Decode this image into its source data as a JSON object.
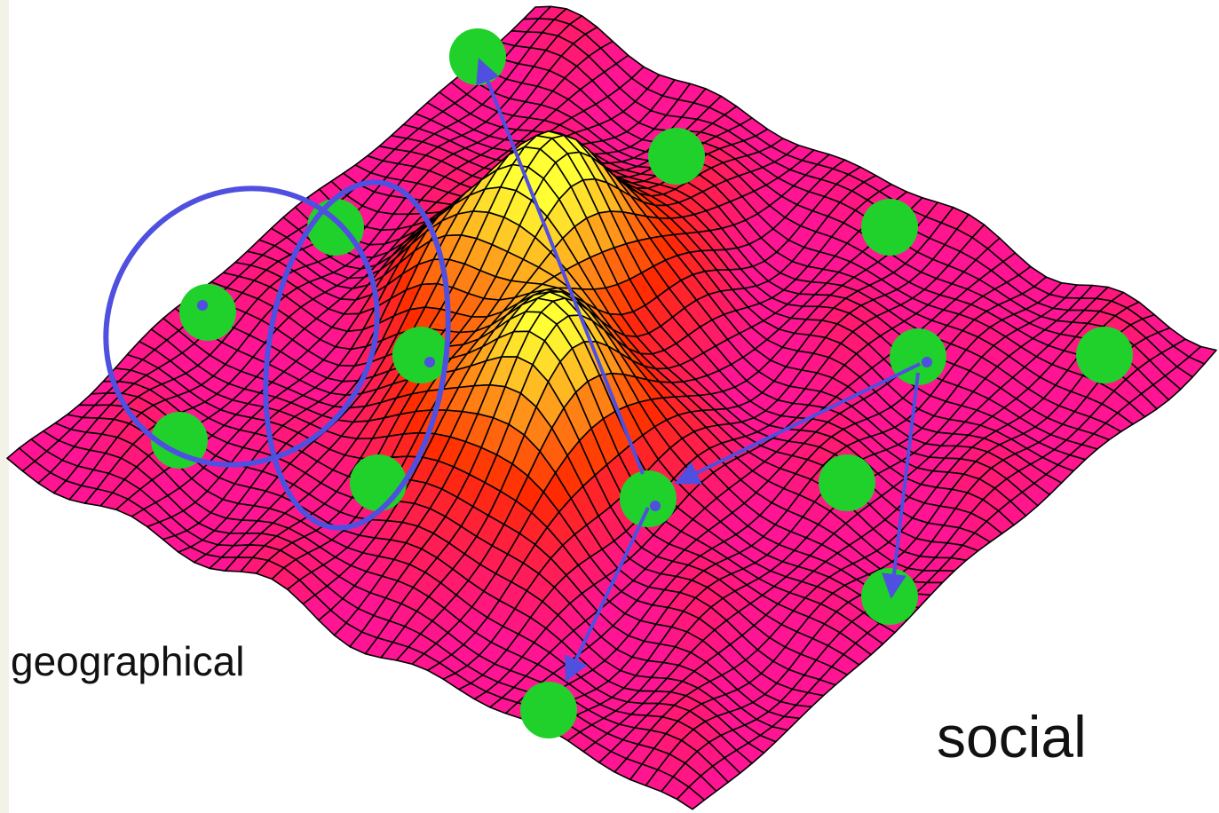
{
  "labels": {
    "geographical": "geographical",
    "social": "social"
  },
  "colors": {
    "background": "#ffffff",
    "grid_line": "#000000",
    "surface_low": "#ff1493",
    "surface_mid": "#ff2a00",
    "surface_high": "#ffff33",
    "node": "#1fd12a",
    "connector": "#4f4fe0",
    "text": "#111111"
  },
  "surface": {
    "type": "mesh",
    "peaks": 2
  }
}
